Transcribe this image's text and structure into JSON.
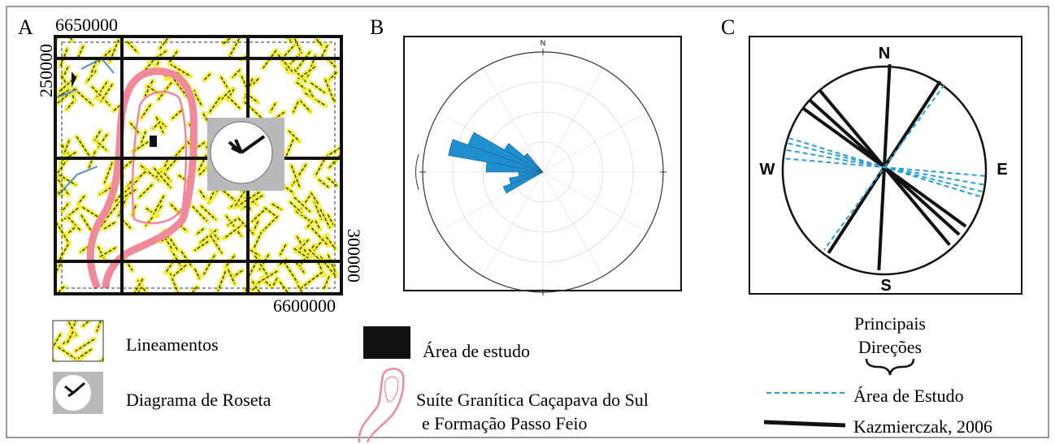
{
  "panels": {
    "a": {
      "label": "A",
      "coord_top": "6650000",
      "coord_left": "250000",
      "coord_right": "300000",
      "coord_bottom": "6600000"
    },
    "b": {
      "label": "B",
      "north": "N"
    },
    "c": {
      "label": "C",
      "north": "N",
      "south": "S",
      "west": "W",
      "east": "E"
    }
  },
  "legend": {
    "lineaments": "Lineamentos",
    "rose": "Diagrama de Roseta",
    "study_area": "Área de estudo",
    "suite_line1": "Suíte Granítica Caçapava do Sul",
    "suite_line2": "e Formação Passo Feio",
    "directions_line1": "Principais",
    "directions_line2": "Direções",
    "study_dir": "Área de Estudo",
    "kazmierczak": "Kazmierczak, 2006"
  }
}
